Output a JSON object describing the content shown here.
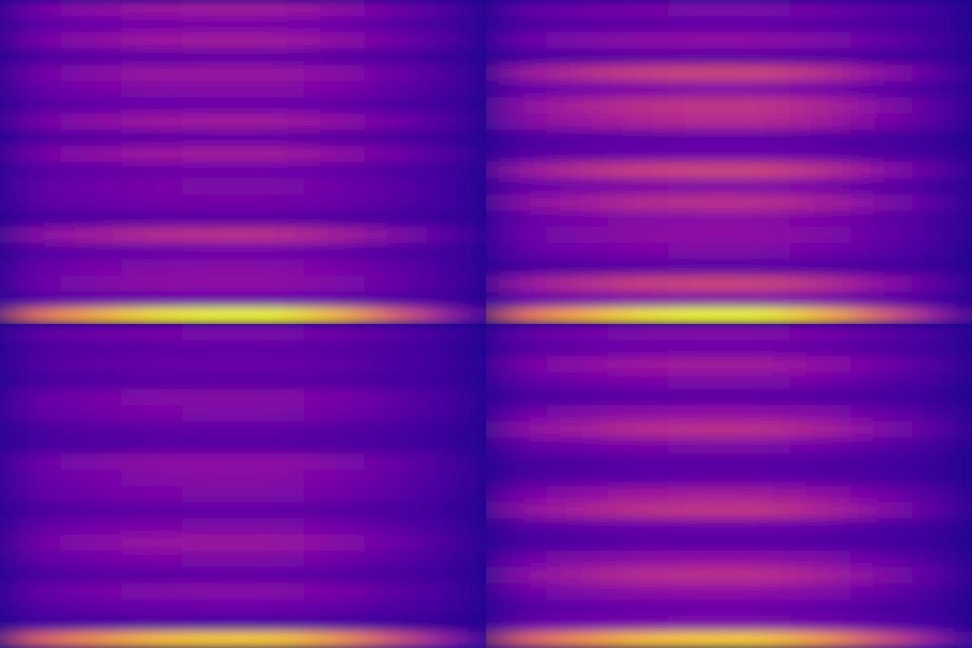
{
  "chart_data": [
    {
      "type": "heatmap",
      "tick_labels": false,
      "zlim": [
        0,
        1
      ],
      "cells": [
        [
          0.23,
          0.29,
          0.34,
          0.35,
          0.35,
          0.31,
          0.22,
          0.13
        ],
        [
          0.16,
          0.19,
          0.22,
          0.23,
          0.23,
          0.2,
          0.15,
          0.1
        ],
        [
          0.23,
          0.29,
          0.34,
          0.35,
          0.35,
          0.31,
          0.22,
          0.13
        ],
        [
          0.12,
          0.15,
          0.16,
          0.17,
          0.17,
          0.15,
          0.12,
          0.08
        ],
        [
          0.22,
          0.27,
          0.32,
          0.33,
          0.33,
          0.29,
          0.2,
          0.12
        ],
        [
          0.18,
          0.23,
          0.26,
          0.27,
          0.27,
          0.24,
          0.17,
          0.11
        ],
        [
          0.14,
          0.17,
          0.19,
          0.2,
          0.2,
          0.18,
          0.13,
          0.09
        ],
        [
          0.23,
          0.29,
          0.34,
          0.35,
          0.35,
          0.31,
          0.22,
          0.13
        ],
        [
          0.12,
          0.15,
          0.16,
          0.17,
          0.17,
          0.15,
          0.12,
          0.08
        ],
        [
          0.23,
          0.29,
          0.34,
          0.35,
          0.35,
          0.31,
          0.22,
          0.13
        ],
        [
          0.14,
          0.17,
          0.19,
          0.2,
          0.2,
          0.18,
          0.13,
          0.09
        ],
        [
          0.17,
          0.21,
          0.24,
          0.25,
          0.25,
          0.22,
          0.16,
          0.1
        ],
        [
          0.16,
          0.19,
          0.22,
          0.23,
          0.23,
          0.2,
          0.15,
          0.1
        ],
        [
          0.11,
          0.13,
          0.15,
          0.15,
          0.15,
          0.14,
          0.11,
          0.08
        ],
        [
          0.28,
          0.35,
          0.41,
          0.43,
          0.43,
          0.37,
          0.26,
          0.15
        ],
        [
          0.14,
          0.17,
          0.19,
          0.2,
          0.2,
          0.18,
          0.13,
          0.09
        ],
        [
          0.18,
          0.23,
          0.26,
          0.27,
          0.27,
          0.24,
          0.17,
          0.11
        ],
        [
          0.2,
          0.25,
          0.29,
          0.3,
          0.3,
          0.26,
          0.19,
          0.11
        ],
        [
          0.14,
          0.17,
          0.19,
          0.2,
          0.2,
          0.18,
          0.13,
          0.09
        ],
        [
          0.62,
          0.81,
          0.95,
          1.0,
          1.0,
          0.86,
          0.57,
          0.29
        ]
      ]
    },
    {
      "type": "heatmap",
      "tick_labels": false,
      "zlim": [
        0,
        1
      ],
      "cells": [
        [
          0.17,
          0.21,
          0.24,
          0.25,
          0.25,
          0.22,
          0.16,
          0.1
        ],
        [
          0.12,
          0.15,
          0.16,
          0.17,
          0.17,
          0.15,
          0.12,
          0.08
        ],
        [
          0.2,
          0.25,
          0.29,
          0.3,
          0.3,
          0.26,
          0.19,
          0.11
        ],
        [
          0.11,
          0.13,
          0.15,
          0.15,
          0.15,
          0.14,
          0.11,
          0.08
        ],
        [
          0.32,
          0.41,
          0.48,
          0.5,
          0.5,
          0.43,
          0.3,
          0.16
        ],
        [
          0.17,
          0.21,
          0.24,
          0.25,
          0.25,
          0.22,
          0.16,
          0.1
        ],
        [
          0.29,
          0.37,
          0.43,
          0.45,
          0.45,
          0.39,
          0.27,
          0.15
        ],
        [
          0.26,
          0.33,
          0.38,
          0.4,
          0.4,
          0.35,
          0.24,
          0.14
        ],
        [
          0.12,
          0.15,
          0.16,
          0.17,
          0.17,
          0.15,
          0.12,
          0.08
        ],
        [
          0.14,
          0.17,
          0.19,
          0.2,
          0.2,
          0.18,
          0.13,
          0.09
        ],
        [
          0.32,
          0.41,
          0.48,
          0.5,
          0.5,
          0.43,
          0.3,
          0.16
        ],
        [
          0.17,
          0.21,
          0.24,
          0.25,
          0.25,
          0.22,
          0.16,
          0.1
        ],
        [
          0.28,
          0.35,
          0.41,
          0.43,
          0.43,
          0.37,
          0.26,
          0.15
        ],
        [
          0.18,
          0.23,
          0.26,
          0.27,
          0.27,
          0.24,
          0.17,
          0.11
        ],
        [
          0.2,
          0.25,
          0.29,
          0.3,
          0.3,
          0.26,
          0.19,
          0.11
        ],
        [
          0.17,
          0.21,
          0.24,
          0.25,
          0.25,
          0.22,
          0.16,
          0.1
        ],
        [
          0.11,
          0.13,
          0.15,
          0.15,
          0.15,
          0.14,
          0.11,
          0.08
        ],
        [
          0.32,
          0.41,
          0.48,
          0.5,
          0.5,
          0.43,
          0.3,
          0.16
        ],
        [
          0.17,
          0.21,
          0.24,
          0.25,
          0.25,
          0.22,
          0.16,
          0.1
        ],
        [
          0.62,
          0.81,
          0.95,
          1.0,
          1.0,
          0.86,
          0.57,
          0.29
        ]
      ]
    },
    {
      "type": "heatmap",
      "tick_labels": false,
      "zlim": [
        0,
        1
      ],
      "cells": [
        [
          0.17,
          0.21,
          0.24,
          0.25,
          0.25,
          0.22,
          0.16,
          0.1
        ],
        [
          0.12,
          0.15,
          0.16,
          0.17,
          0.17,
          0.15,
          0.12,
          0.08
        ],
        [
          0.14,
          0.17,
          0.19,
          0.2,
          0.2,
          0.18,
          0.13,
          0.09
        ],
        [
          0.11,
          0.13,
          0.15,
          0.15,
          0.15,
          0.14,
          0.11,
          0.08
        ],
        [
          0.18,
          0.23,
          0.26,
          0.27,
          0.27,
          0.24,
          0.17,
          0.11
        ],
        [
          0.17,
          0.21,
          0.24,
          0.25,
          0.25,
          0.22,
          0.16,
          0.1
        ],
        [
          0.12,
          0.15,
          0.16,
          0.17,
          0.17,
          0.15,
          0.12,
          0.08
        ],
        [
          0.11,
          0.13,
          0.15,
          0.15,
          0.15,
          0.14,
          0.11,
          0.08
        ],
        [
          0.2,
          0.25,
          0.29,
          0.3,
          0.3,
          0.26,
          0.19,
          0.11
        ],
        [
          0.18,
          0.23,
          0.26,
          0.27,
          0.27,
          0.24,
          0.17,
          0.11
        ],
        [
          0.17,
          0.21,
          0.24,
          0.25,
          0.25,
          0.22,
          0.16,
          0.1
        ],
        [
          0.12,
          0.15,
          0.16,
          0.17,
          0.17,
          0.15,
          0.12,
          0.08
        ],
        [
          0.17,
          0.21,
          0.24,
          0.25,
          0.25,
          0.22,
          0.16,
          0.1
        ],
        [
          0.22,
          0.27,
          0.32,
          0.33,
          0.33,
          0.29,
          0.2,
          0.12
        ],
        [
          0.17,
          0.21,
          0.24,
          0.25,
          0.25,
          0.22,
          0.16,
          0.1
        ],
        [
          0.12,
          0.15,
          0.16,
          0.17,
          0.17,
          0.15,
          0.12,
          0.08
        ],
        [
          0.18,
          0.23,
          0.26,
          0.27,
          0.27,
          0.24,
          0.17,
          0.11
        ],
        [
          0.14,
          0.17,
          0.19,
          0.2,
          0.2,
          0.18,
          0.13,
          0.09
        ],
        [
          0.1,
          0.11,
          0.13,
          0.13,
          0.13,
          0.12,
          0.09,
          0.07
        ],
        [
          0.56,
          0.73,
          0.86,
          0.9,
          0.9,
          0.77,
          0.52,
          0.26
        ]
      ]
    },
    {
      "type": "heatmap",
      "tick_labels": false,
      "zlim": [
        0,
        1
      ],
      "cells": [
        [
          0.18,
          0.23,
          0.26,
          0.27,
          0.27,
          0.24,
          0.17,
          0.11
        ],
        [
          0.14,
          0.17,
          0.19,
          0.2,
          0.2,
          0.18,
          0.13,
          0.09
        ],
        [
          0.23,
          0.29,
          0.34,
          0.35,
          0.35,
          0.31,
          0.22,
          0.13
        ],
        [
          0.17,
          0.21,
          0.24,
          0.25,
          0.25,
          0.22,
          0.16,
          0.1
        ],
        [
          0.11,
          0.13,
          0.15,
          0.15,
          0.15,
          0.14,
          0.11,
          0.08
        ],
        [
          0.2,
          0.25,
          0.29,
          0.3,
          0.3,
          0.26,
          0.19,
          0.11
        ],
        [
          0.28,
          0.35,
          0.41,
          0.43,
          0.43,
          0.37,
          0.26,
          0.15
        ],
        [
          0.17,
          0.21,
          0.24,
          0.25,
          0.25,
          0.22,
          0.16,
          0.1
        ],
        [
          0.11,
          0.13,
          0.15,
          0.15,
          0.15,
          0.14,
          0.11,
          0.08
        ],
        [
          0.12,
          0.15,
          0.16,
          0.17,
          0.17,
          0.15,
          0.12,
          0.08
        ],
        [
          0.23,
          0.29,
          0.34,
          0.35,
          0.35,
          0.31,
          0.22,
          0.13
        ],
        [
          0.29,
          0.37,
          0.43,
          0.45,
          0.45,
          0.39,
          0.27,
          0.15
        ],
        [
          0.14,
          0.17,
          0.19,
          0.2,
          0.2,
          0.18,
          0.13,
          0.09
        ],
        [
          0.11,
          0.13,
          0.15,
          0.15,
          0.15,
          0.14,
          0.11,
          0.08
        ],
        [
          0.2,
          0.25,
          0.29,
          0.3,
          0.3,
          0.26,
          0.19,
          0.11
        ],
        [
          0.28,
          0.35,
          0.41,
          0.43,
          0.43,
          0.37,
          0.26,
          0.15
        ],
        [
          0.2,
          0.25,
          0.29,
          0.3,
          0.3,
          0.26,
          0.19,
          0.11
        ],
        [
          0.14,
          0.17,
          0.19,
          0.2,
          0.2,
          0.18,
          0.13,
          0.09
        ],
        [
          0.17,
          0.21,
          0.24,
          0.25,
          0.25,
          0.22,
          0.16,
          0.1
        ],
        [
          0.56,
          0.73,
          0.86,
          0.9,
          0.9,
          0.77,
          0.52,
          0.26
        ]
      ]
    }
  ]
}
